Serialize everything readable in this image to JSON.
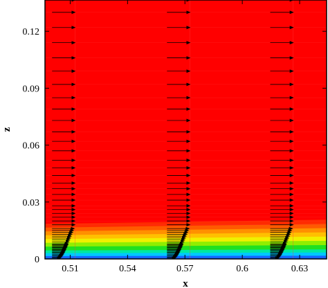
{
  "chart_data": {
    "type": "contour-vector",
    "title": "",
    "xlabel": "x",
    "ylabel": "z",
    "xlim": [
      0.4968,
      0.6441
    ],
    "ylim": [
      0,
      0.1365
    ],
    "x_ticks": [
      {
        "value": 0.51,
        "label": "0.51"
      },
      {
        "value": 0.54,
        "label": "0.54"
      },
      {
        "value": 0.57,
        "label": "0.57"
      },
      {
        "value": 0.6,
        "label": "0.6"
      },
      {
        "value": 0.63,
        "label": "0.63"
      }
    ],
    "y_ticks": [
      {
        "value": 0,
        "label": "0"
      },
      {
        "value": 0.03,
        "label": "0.03"
      },
      {
        "value": 0.06,
        "label": "0.06"
      },
      {
        "value": 0.09,
        "label": "0.09"
      },
      {
        "value": 0.12,
        "label": "0.12"
      }
    ],
    "contour_bands": [
      {
        "z0": 0.0,
        "z1": 0.0015,
        "color": "#1565ff"
      },
      {
        "z0": 0.0015,
        "z1": 0.003,
        "color": "#00c8ff"
      },
      {
        "z0": 0.003,
        "z1": 0.0045,
        "color": "#00e8a0"
      },
      {
        "z0": 0.0045,
        "z1": 0.0065,
        "color": "#20e020"
      },
      {
        "z0": 0.0065,
        "z1": 0.0085,
        "color": "#90ee00"
      },
      {
        "z0": 0.0085,
        "z1": 0.0105,
        "color": "#f0f000"
      },
      {
        "z0": 0.0105,
        "z1": 0.0125,
        "color": "#ffc000"
      },
      {
        "z0": 0.0125,
        "z1": 0.0145,
        "color": "#ff9000"
      },
      {
        "z0": 0.0145,
        "z1": 0.0165,
        "color": "#ff5a00"
      },
      {
        "z0": 0.0165,
        "z1": 0.0185,
        "color": "#ff2a00"
      }
    ],
    "background_color": "#ff0000",
    "boundary_layer_slope": 0.0035,
    "vector_profiles": [
      {
        "x0": 0.5005,
        "arrow_length": 0.012
      },
      {
        "x0": 0.5606,
        "arrow_length": 0.012
      },
      {
        "x0": 0.6146,
        "arrow_length": 0.012
      }
    ],
    "vector_rows_z": [
      0.0005,
      0.001,
      0.0015,
      0.002,
      0.0025,
      0.003,
      0.0035,
      0.004,
      0.0045,
      0.005,
      0.0055,
      0.006,
      0.0065,
      0.007,
      0.0075,
      0.008,
      0.009,
      0.01,
      0.011,
      0.012,
      0.013,
      0.014,
      0.015,
      0.016,
      0.018,
      0.02,
      0.022,
      0.024,
      0.026,
      0.028,
      0.031,
      0.034,
      0.037,
      0.04,
      0.044,
      0.048,
      0.052,
      0.057,
      0.062,
      0.067,
      0.073,
      0.079,
      0.085,
      0.092,
      0.099,
      0.106,
      0.114,
      0.122,
      0.13,
      0.1365
    ],
    "boundary_layer_thickness": 0.017
  }
}
